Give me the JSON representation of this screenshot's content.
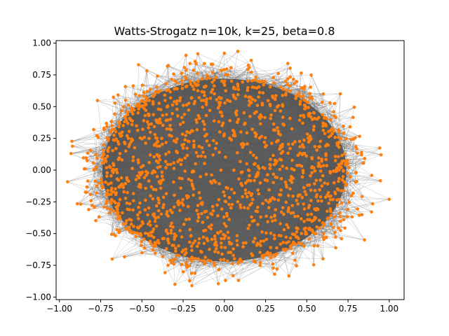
{
  "chart_data": {
    "type": "scatter",
    "subtype": "network-graph",
    "title": "Watts-Strogatz n=10k, k=25, beta=0.8",
    "xlabel": "",
    "ylabel": "",
    "xlim": [
      -1.02,
      1.09
    ],
    "ylim": [
      -1.02,
      1.02
    ],
    "xticks": [
      -1.0,
      -0.75,
      -0.5,
      -0.25,
      0.0,
      0.25,
      0.5,
      0.75,
      1.0
    ],
    "xtick_labels": [
      "−1.00",
      "−0.75",
      "−0.50",
      "−0.25",
      "0.00",
      "0.25",
      "0.50",
      "0.75",
      "1.00"
    ],
    "yticks": [
      -1.0,
      -0.75,
      -0.5,
      -0.25,
      0.0,
      0.25,
      0.5,
      0.75,
      1.0
    ],
    "ytick_labels": [
      "−1.00",
      "−0.75",
      "−0.50",
      "−0.25",
      "0.00",
      "0.25",
      "0.50",
      "0.75",
      "1.00"
    ],
    "grid": false,
    "legend": "none",
    "node_color": "#ff7f0e",
    "edge_color": "#555555",
    "graph": {
      "n": 10000,
      "k": 25,
      "beta": 0.8
    },
    "extreme_points": [
      {
        "x": -0.93,
        "y": 0.13
      },
      {
        "x": 1.0,
        "y": -0.23
      },
      {
        "x": 0.0,
        "y": 0.92
      },
      {
        "x": -0.3,
        "y": -0.9
      },
      {
        "x": -0.52,
        "y": 0.83
      },
      {
        "x": 0.6,
        "y": 0.6
      },
      {
        "x": 0.95,
        "y": 0.12
      },
      {
        "x": 0.85,
        "y": -0.55
      },
      {
        "x": -0.68,
        "y": -0.7
      }
    ]
  }
}
